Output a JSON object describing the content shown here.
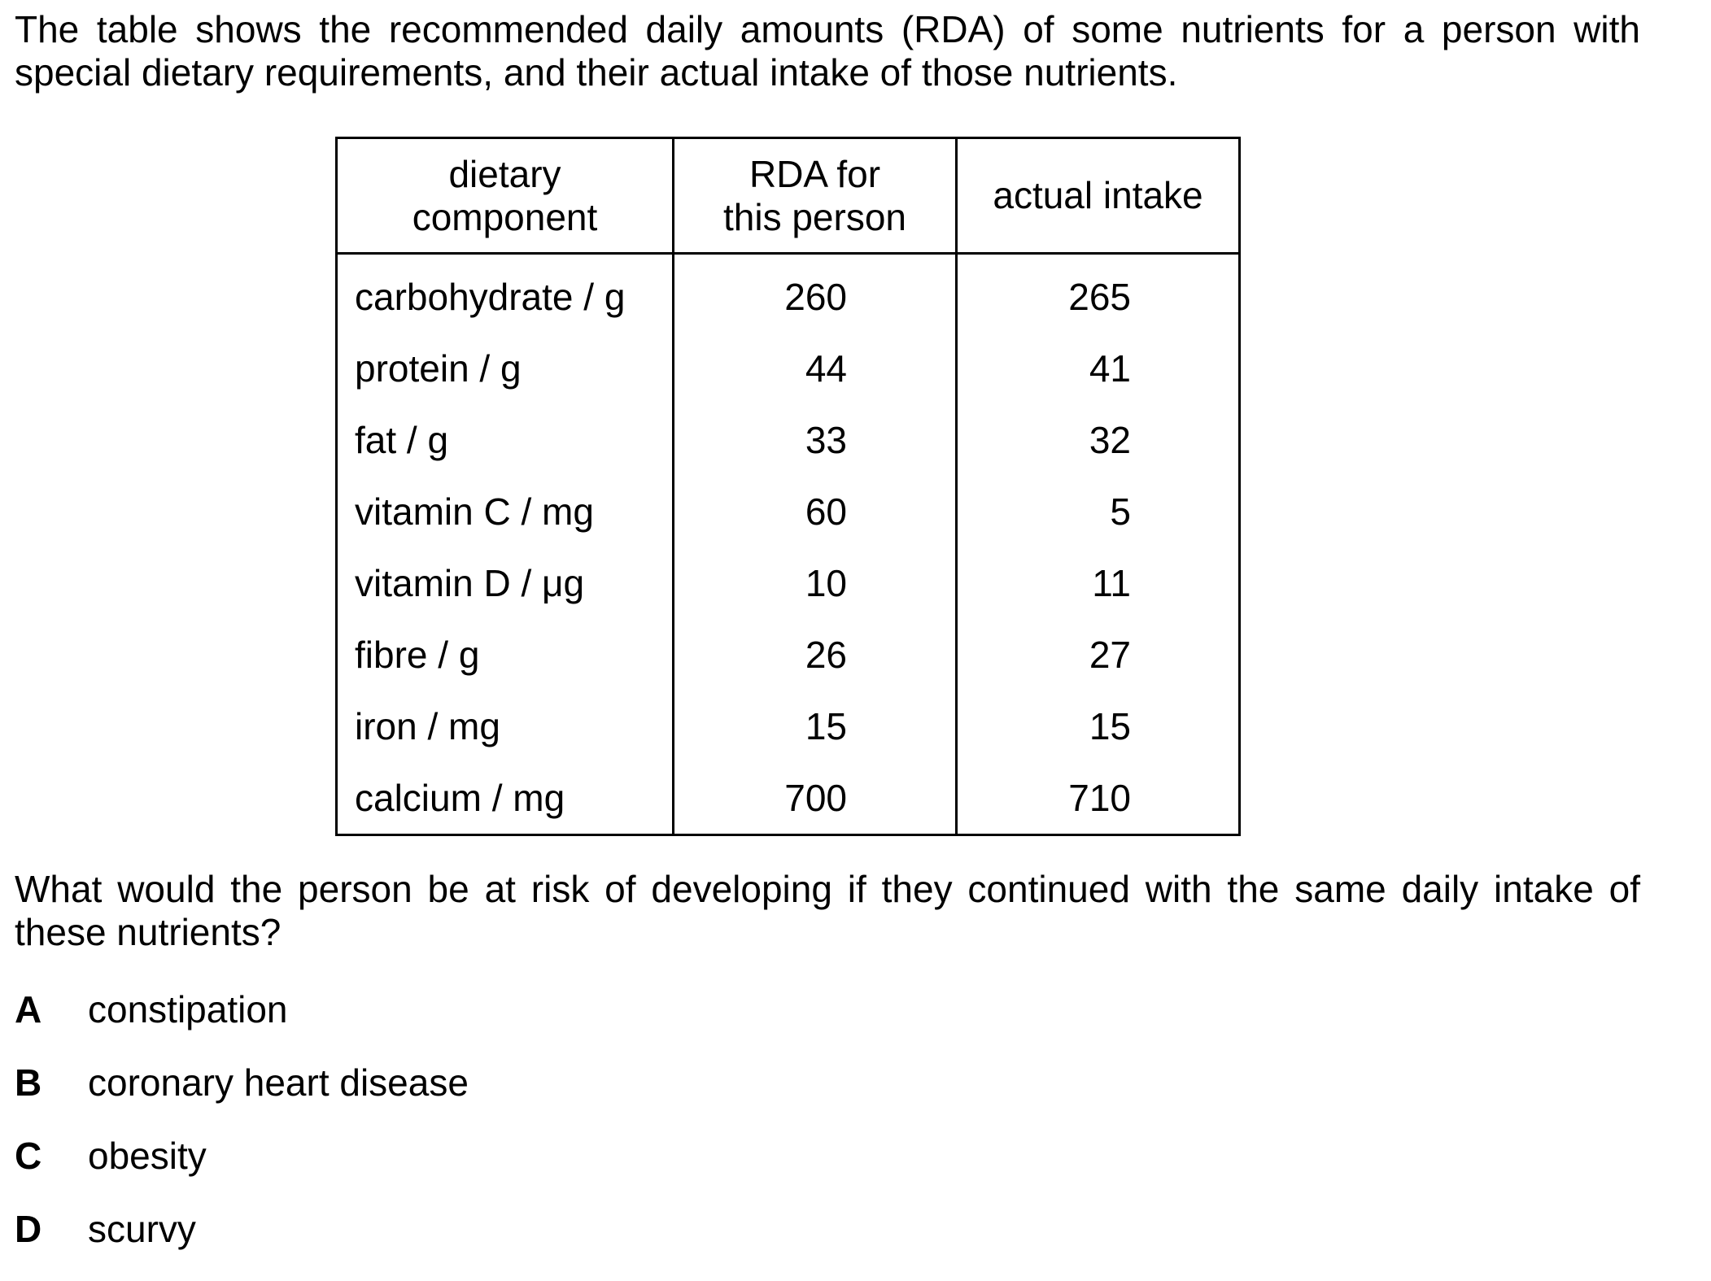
{
  "intro": "The table shows the recommended daily amounts (RDA) of some nutrients for a person with special dietary requirements, and their actual intake of those nutrients.",
  "table": {
    "headers": [
      [
        "dietary",
        "component"
      ],
      [
        "RDA for",
        "this person"
      ],
      [
        "actual intake"
      ]
    ],
    "rows": [
      {
        "component": "carbohydrate / g",
        "rda": "260",
        "actual": "265"
      },
      {
        "component": "protein / g",
        "rda": "44",
        "actual": "41"
      },
      {
        "component": "fat / g",
        "rda": "33",
        "actual": "32"
      },
      {
        "component": "vitamin C / mg",
        "rda": "60",
        "actual": "5"
      },
      {
        "component": "vitamin D / μg",
        "rda": "10",
        "actual": "11"
      },
      {
        "component": "fibre / g",
        "rda": "26",
        "actual": "27"
      },
      {
        "component": "iron / mg",
        "rda": "15",
        "actual": "15"
      },
      {
        "component": "calcium / mg",
        "rda": "700",
        "actual": "710"
      }
    ]
  },
  "question": "What would the person be at risk of developing if they continued with the same daily intake of these nutrients?",
  "options": [
    {
      "letter": "A",
      "text": "constipation"
    },
    {
      "letter": "B",
      "text": "coronary heart disease"
    },
    {
      "letter": "C",
      "text": "obesity"
    },
    {
      "letter": "D",
      "text": "scurvy"
    }
  ]
}
